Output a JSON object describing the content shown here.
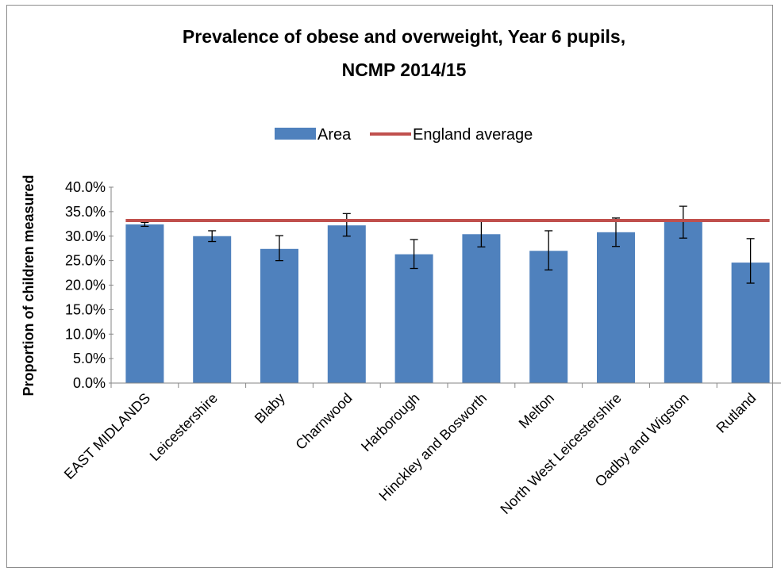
{
  "chart_data": {
    "type": "bar",
    "title": "Prevalence of obese and overweight, Year 6 pupils, NCMP 2014/15",
    "title_lines": [
      "Prevalence of obese and overweight, Year 6 pupils,",
      "NCMP 2014/15"
    ],
    "xlabel": "",
    "ylabel": "Proportion of children measured",
    "ylim": [
      0,
      40
    ],
    "y_ticks": [
      0,
      5,
      10,
      15,
      20,
      25,
      30,
      35,
      40
    ],
    "y_tick_labels": [
      "0.0%",
      "5.0%",
      "10.0%",
      "15.0%",
      "20.0%",
      "25.0%",
      "30.0%",
      "35.0%",
      "40.0%"
    ],
    "categories": [
      "EAST MIDLANDS",
      "Leicestershire",
      "Blaby",
      "Charnwood",
      "Harborough",
      "Hinckley and Bosworth",
      "Melton",
      "North West Leicestershire",
      "Oadby and Wigston",
      "Rutland"
    ],
    "series": [
      {
        "name": "Area",
        "type": "bar",
        "color": "#4f81bd",
        "values": [
          32.4,
          30.0,
          27.4,
          32.2,
          26.3,
          30.4,
          27.0,
          30.8,
          32.9,
          24.6
        ],
        "ci_lower": [
          32.0,
          28.9,
          25.0,
          30.0,
          23.4,
          27.8,
          23.1,
          27.9,
          29.6,
          20.4
        ],
        "ci_upper": [
          32.8,
          31.1,
          30.1,
          34.6,
          29.3,
          33.1,
          31.1,
          33.7,
          36.1,
          29.5
        ]
      },
      {
        "name": "England average",
        "type": "line",
        "color": "#c0504d",
        "value": 33.2
      }
    ],
    "legend_position": "top",
    "grid": false
  }
}
